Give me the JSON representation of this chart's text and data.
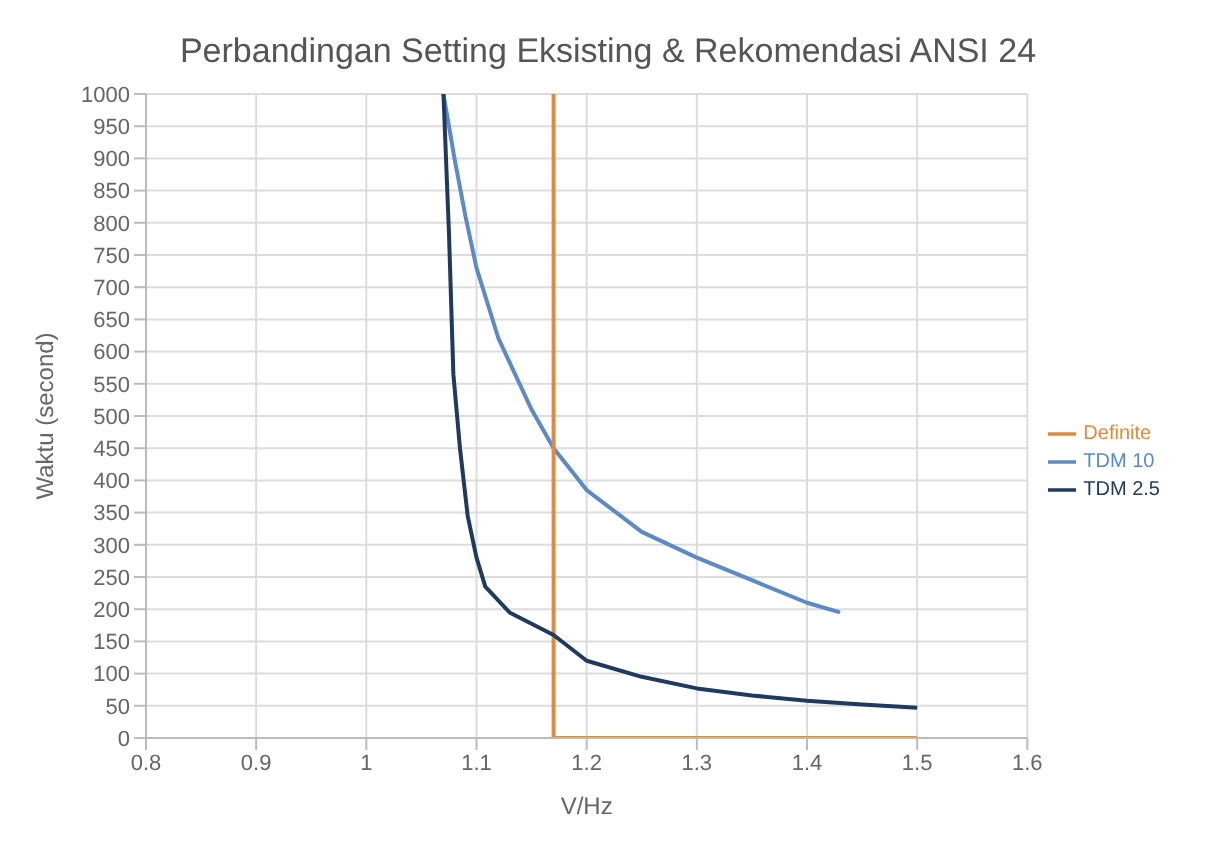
{
  "chart_data": {
    "type": "line",
    "title": "Perbandingan Setting Eksisting & Rekomendasi ANSI 24",
    "xlabel": "V/Hz",
    "ylabel": "Waktu (second)",
    "xlim": [
      0.8,
      1.6
    ],
    "xticks": [
      0.8,
      0.9,
      1,
      1.1,
      1.2,
      1.3,
      1.4,
      1.5,
      1.6
    ],
    "ylim": [
      0,
      1000
    ],
    "yticks": [
      0,
      50,
      100,
      150,
      200,
      250,
      300,
      350,
      400,
      450,
      500,
      550,
      600,
      650,
      700,
      750,
      800,
      850,
      900,
      950,
      1000
    ],
    "grid": true,
    "legend": "right",
    "marker": "none",
    "line_style": "solid",
    "series": [
      {
        "name": "TDM 10",
        "color": "#5b8ac6",
        "x": [
          1.07,
          1.08,
          1.09,
          1.1,
          1.12,
          1.15,
          1.17,
          1.2,
          1.25,
          1.3,
          1.35,
          1.4,
          1.43
        ],
        "values": [
          1000,
          900,
          810,
          730,
          620,
          510,
          450,
          385,
          320,
          280,
          245,
          210,
          195
        ]
      },
      {
        "name": "Definite",
        "color": "#e08a3c",
        "x": [
          1.17,
          1.17,
          1.5
        ],
        "values": [
          1000,
          0,
          0
        ]
      },
      {
        "name": "TDM 2.5",
        "color": "#1f3a5f",
        "x": [
          1.07,
          1.075,
          1.079,
          1.085,
          1.092,
          1.1,
          1.108,
          1.13,
          1.17,
          1.2,
          1.25,
          1.3,
          1.35,
          1.4,
          1.45,
          1.5
        ],
        "values": [
          1000,
          785,
          565,
          450,
          345,
          280,
          235,
          195,
          160,
          120,
          95,
          77,
          66,
          58,
          52,
          47
        ]
      }
    ]
  }
}
